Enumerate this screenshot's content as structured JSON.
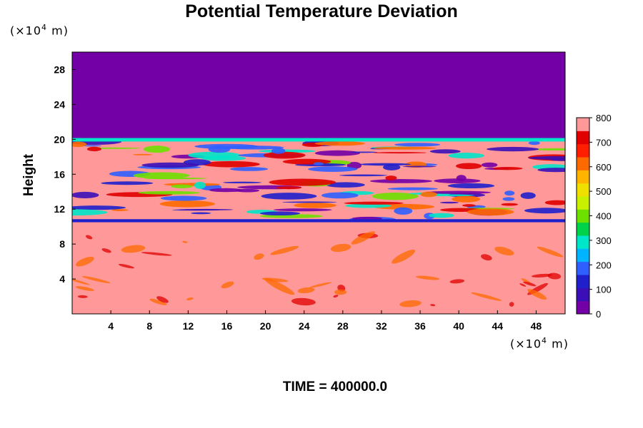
{
  "chart_data": {
    "type": "heatmap",
    "title": "Potential Temperature Deviation",
    "ylabel": "Height",
    "y_unit_prefix": "(×10",
    "y_unit_exp": "4",
    "y_unit_suffix": " m)",
    "x_unit_prefix": "(×10",
    "x_unit_exp": "4",
    "x_unit_suffix": " m)",
    "xlim": [
      0,
      51
    ],
    "ylim": [
      0,
      30
    ],
    "x_ticks": [
      4,
      8,
      12,
      16,
      20,
      24,
      28,
      32,
      36,
      40,
      44,
      48
    ],
    "y_ticks": [
      4,
      8,
      12,
      16,
      20,
      24,
      28
    ],
    "colorbar": {
      "min": 0,
      "max": 800,
      "ticks": [
        0,
        100,
        200,
        300,
        400,
        500,
        600,
        700,
        800
      ]
    },
    "fields": {
      "upper_layer_value": 0,
      "upper_layer_bottom_height": 20,
      "lower_layer_value": 800,
      "stable_layer_bottom_height": 10.5,
      "stable_layer_top_height": 20,
      "lower_layer_color": "#ff9999",
      "upper_layer_color": "#7300a6"
    },
    "annotation": "TIME = 400000.0"
  }
}
